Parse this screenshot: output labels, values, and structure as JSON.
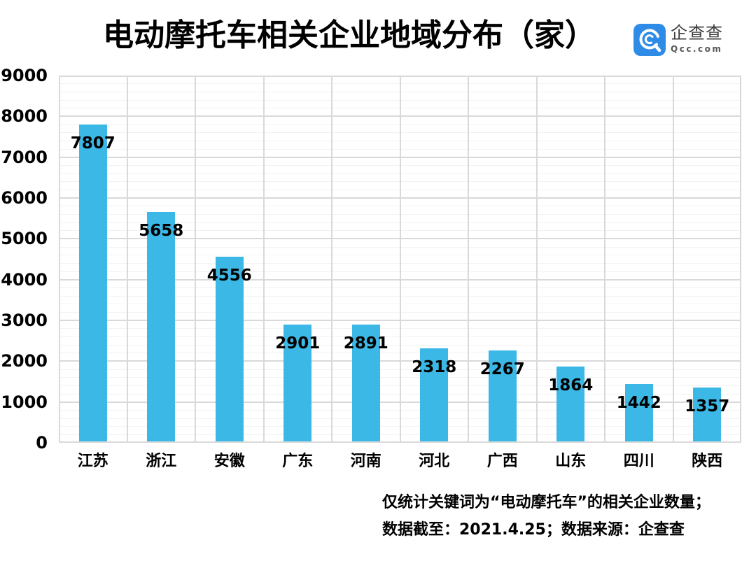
{
  "header": {
    "title": "电动摩托车相关企业地域分布（家）",
    "logo": {
      "name": "企查查",
      "domain": "Qcc.com",
      "brand_color": "#2E8BE6"
    }
  },
  "chart_data": {
    "type": "bar",
    "title": "电动摩托车相关企业地域分布（家）",
    "categories": [
      "江苏",
      "浙江",
      "安徽",
      "广东",
      "河南",
      "河北",
      "广西",
      "山东",
      "四川",
      "陕西"
    ],
    "values": [
      7807,
      5658,
      4556,
      2901,
      2891,
      2318,
      2267,
      1864,
      1442,
      1357
    ],
    "xlabel": "",
    "ylabel": "",
    "ylim": [
      0,
      9000
    ],
    "y_ticks": [
      0,
      1000,
      2000,
      3000,
      4000,
      5000,
      6000,
      7000,
      8000,
      9000
    ],
    "y_major_step": 1000,
    "y_minor_step": 200,
    "grid": true,
    "legend": false,
    "data_labels": true,
    "data_label_position": "inside-end",
    "bar_color": "#3BB8E6",
    "gridline_major_color": "#D9D9D9",
    "gridline_minor_color": "#F2F2F2",
    "plot_border_color": "#D9D9D9"
  },
  "footnote": {
    "line1": "仅统计关键词为“电动摩托车”的相关企业数量；",
    "line2": "数据截至：2021.4.25；数据来源：企查查"
  }
}
